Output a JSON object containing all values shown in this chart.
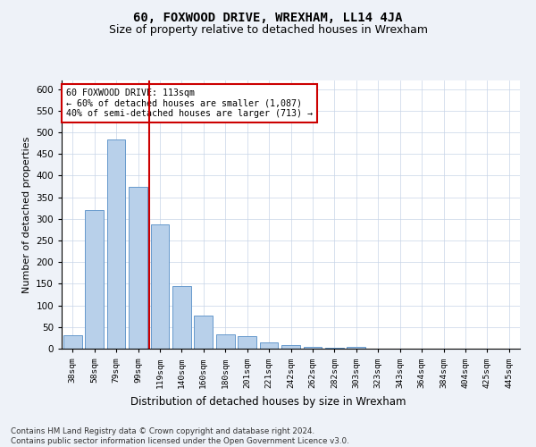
{
  "title": "60, FOXWOOD DRIVE, WREXHAM, LL14 4JA",
  "subtitle": "Size of property relative to detached houses in Wrexham",
  "xlabel": "Distribution of detached houses by size in Wrexham",
  "ylabel": "Number of detached properties",
  "bar_heights": [
    32,
    320,
    483,
    375,
    288,
    144,
    76,
    33,
    29,
    15,
    8,
    4,
    2,
    5,
    1,
    1,
    0,
    0,
    0,
    0,
    1
  ],
  "categories": [
    "38sqm",
    "58sqm",
    "79sqm",
    "99sqm",
    "119sqm",
    "140sqm",
    "160sqm",
    "180sqm",
    "201sqm",
    "221sqm",
    "242sqm",
    "262sqm",
    "282sqm",
    "303sqm",
    "323sqm",
    "343sqm",
    "364sqm",
    "384sqm",
    "404sqm",
    "425sqm",
    "445sqm"
  ],
  "bar_color": "#b8d0ea",
  "bar_edge_color": "#6699cc",
  "vline_color": "#cc0000",
  "vline_category_index": 3,
  "annotation_line1": "60 FOXWOOD DRIVE: 113sqm",
  "annotation_line2": "← 60% of detached houses are smaller (1,087)",
  "annotation_line3": "40% of semi-detached houses are larger (713) →",
  "annotation_box_color": "#cc0000",
  "ylim": [
    0,
    620
  ],
  "yticks": [
    0,
    50,
    100,
    150,
    200,
    250,
    300,
    350,
    400,
    450,
    500,
    550,
    600
  ],
  "footer_line1": "Contains HM Land Registry data © Crown copyright and database right 2024.",
  "footer_line2": "Contains public sector information licensed under the Open Government Licence v3.0.",
  "bg_color": "#eef2f8",
  "plot_bg_color": "#ffffff",
  "grid_color": "#c8d4e8",
  "title_fontsize": 10,
  "subtitle_fontsize": 9
}
